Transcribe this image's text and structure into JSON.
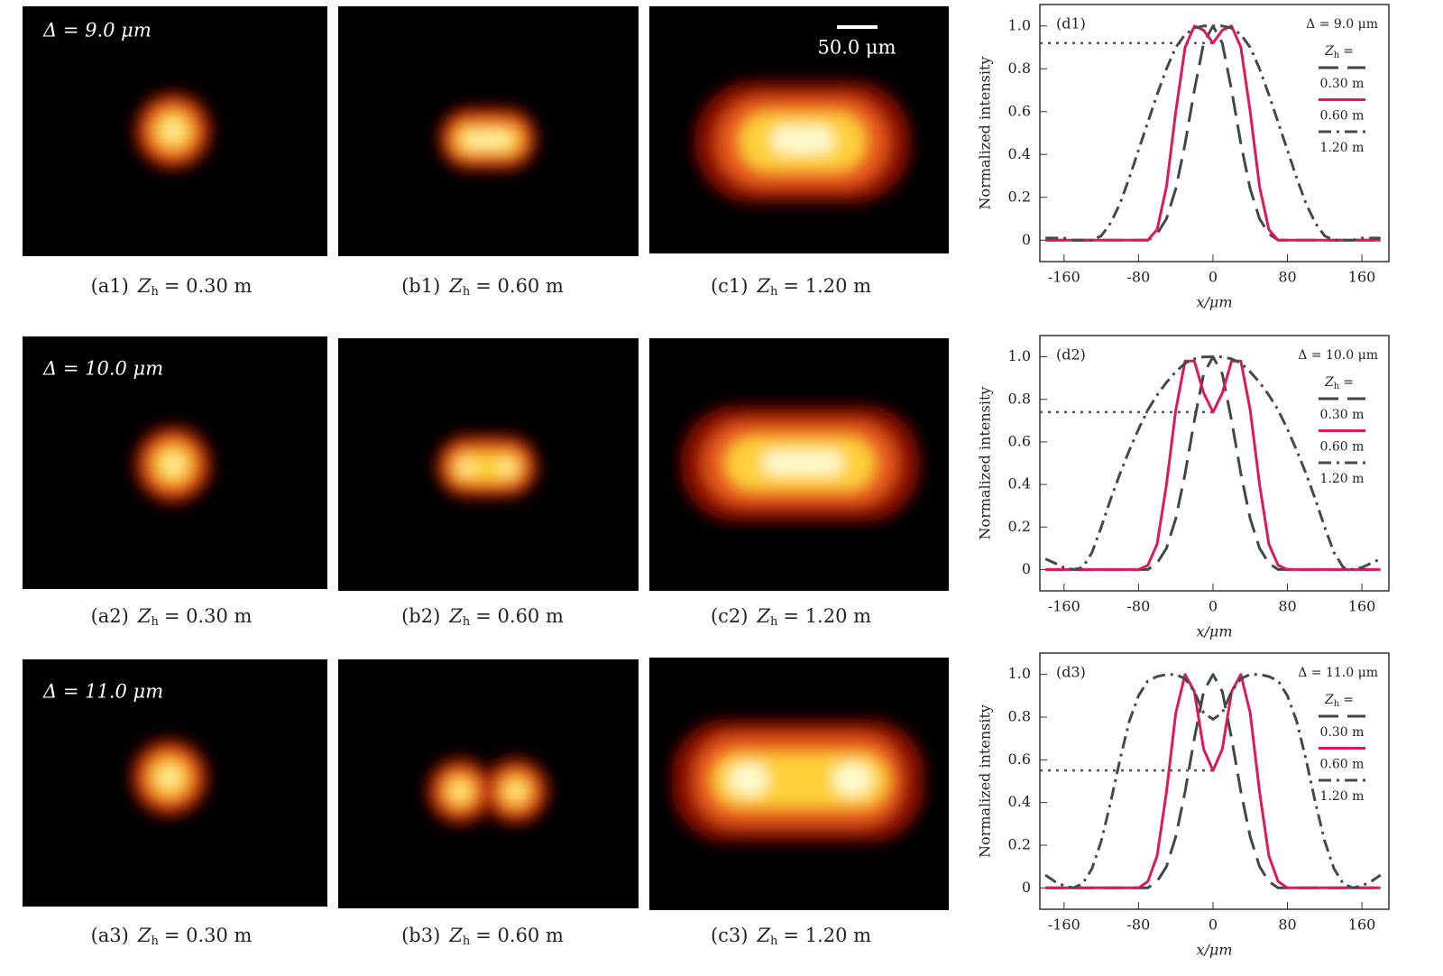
{
  "panels": [
    {
      "delta": "Δ = 9.0 μm",
      "captions": [
        {
          "tag": "(a1)",
          "var": "Z",
          "sub": "h",
          "value": "= 0.30 m"
        },
        {
          "tag": "(b1)",
          "var": "Z",
          "sub": "h",
          "value": "= 0.60 m"
        },
        {
          "tag": "(c1)",
          "var": "Z",
          "sub": "h",
          "value": "= 1.20 m"
        }
      ]
    },
    {
      "delta": "Δ = 10.0 μm",
      "captions": [
        {
          "tag": "(a2)",
          "var": "Z",
          "sub": "h",
          "value": "= 0.30 m"
        },
        {
          "tag": "(b2)",
          "var": "Z",
          "sub": "h",
          "value": "= 0.60 m"
        },
        {
          "tag": "(c2)",
          "var": "Z",
          "sub": "h",
          "value": "= 1.20 m"
        }
      ]
    },
    {
      "delta": "Δ = 11.0 μm",
      "captions": [
        {
          "tag": "(a3)",
          "var": "Z",
          "sub": "h",
          "value": "= 0.30 m"
        },
        {
          "tag": "(b3)",
          "var": "Z",
          "sub": "h",
          "value": "= 0.60 m"
        },
        {
          "tag": "(c3)",
          "var": "Z",
          "sub": "h",
          "value": "= 1.20 m"
        }
      ]
    }
  ],
  "scale_bar": "50.0 μm",
  "chart_data": [
    {
      "type": "line",
      "panel_label": "(d1)",
      "annotation": "Δ = 9.0 μm",
      "legend_title": {
        "var": "Z",
        "sub": "h",
        "rest": "="
      },
      "x_label": "x/μm",
      "y_label": "Normalized intensity",
      "xlim": [
        -186,
        189
      ],
      "ylim": [
        -0.1,
        1.1
      ],
      "xticks": [
        -160,
        -80,
        0,
        80,
        160
      ],
      "yticks": [
        0,
        0.2,
        0.4,
        0.6,
        0.8,
        {
          "value": 1,
          "label": "1.0"
        }
      ],
      "x": [
        -180,
        -170,
        -160,
        -150,
        -140,
        -130,
        -120,
        -110,
        -100,
        -90,
        -80,
        -70,
        -60,
        -50,
        -40,
        -30,
        -20,
        -10,
        0,
        10,
        20,
        30,
        40,
        50,
        60,
        70,
        80,
        90,
        100,
        110,
        120,
        130,
        140,
        150,
        160,
        170,
        180
      ],
      "hline": {
        "y": 0.92,
        "x": [
          -186,
          5
        ]
      },
      "series": [
        {
          "name": "0.30 m",
          "color": "#3b4a47",
          "dash": "dashed",
          "values": [
            0,
            0,
            0,
            0,
            0,
            0,
            0,
            0,
            0,
            0,
            0,
            0,
            0.03,
            0.1,
            0.24,
            0.45,
            0.7,
            0.92,
            1,
            0.92,
            0.7,
            0.45,
            0.24,
            0.1,
            0.03,
            0,
            0,
            0,
            0,
            0,
            0,
            0,
            0,
            0,
            0,
            0,
            0
          ]
        },
        {
          "name": "0.60 m",
          "color": "#e0185a",
          "dash": "solid",
          "values": [
            0,
            0,
            0,
            0,
            0,
            0,
            0,
            0,
            0,
            0,
            0,
            0,
            0.05,
            0.25,
            0.6,
            0.9,
            1,
            0.98,
            0.92,
            0.98,
            1,
            0.9,
            0.6,
            0.25,
            0.05,
            0,
            0,
            0,
            0,
            0,
            0,
            0,
            0,
            0,
            0,
            0,
            0
          ]
        },
        {
          "name": "1.20 m",
          "color": "#45484c",
          "dash": "dashdot",
          "values": [
            0.01,
            0.01,
            0.01,
            0,
            0,
            0,
            0.02,
            0.08,
            0.17,
            0.29,
            0.42,
            0.55,
            0.68,
            0.8,
            0.9,
            0.96,
            0.99,
            1,
            1,
            1,
            0.99,
            0.96,
            0.9,
            0.8,
            0.68,
            0.55,
            0.42,
            0.29,
            0.17,
            0.08,
            0.02,
            0,
            0,
            0,
            0.01,
            0.01,
            0.01
          ]
        }
      ]
    },
    {
      "type": "line",
      "panel_label": "(d2)",
      "annotation": "Δ = 10.0 μm",
      "legend_title": {
        "var": "Z",
        "sub": "h",
        "rest": "="
      },
      "x_label": "x/μm",
      "y_label": "Normalized intensity",
      "xlim": [
        -186,
        189
      ],
      "ylim": [
        -0.1,
        1.1
      ],
      "xticks": [
        -160,
        -80,
        0,
        80,
        160
      ],
      "yticks": [
        0,
        0.2,
        0.4,
        0.6,
        0.8,
        {
          "value": 1,
          "label": "1.0"
        }
      ],
      "x": [
        -180,
        -170,
        -160,
        -150,
        -140,
        -130,
        -120,
        -110,
        -100,
        -90,
        -80,
        -70,
        -60,
        -50,
        -40,
        -30,
        -20,
        -10,
        0,
        10,
        20,
        30,
        40,
        50,
        60,
        70,
        80,
        90,
        100,
        110,
        120,
        130,
        140,
        150,
        160,
        170,
        180
      ],
      "hline": {
        "y": 0.74,
        "x": [
          -186,
          0
        ]
      },
      "series": [
        {
          "name": "0.30 m",
          "color": "#3b4a47",
          "dash": "dashed",
          "values": [
            0,
            0,
            0,
            0,
            0,
            0,
            0,
            0,
            0,
            0,
            0,
            0,
            0.03,
            0.1,
            0.24,
            0.45,
            0.7,
            0.92,
            1,
            0.92,
            0.7,
            0.45,
            0.24,
            0.1,
            0.03,
            0,
            0,
            0,
            0,
            0,
            0,
            0,
            0,
            0,
            0,
            0,
            0
          ]
        },
        {
          "name": "0.60 m",
          "color": "#e0185a",
          "dash": "solid",
          "values": [
            0,
            0,
            0,
            0,
            0,
            0,
            0,
            0,
            0,
            0,
            0,
            0.02,
            0.12,
            0.4,
            0.75,
            0.98,
            0.98,
            0.83,
            0.74,
            0.83,
            0.98,
            0.98,
            0.75,
            0.4,
            0.12,
            0.02,
            0,
            0,
            0,
            0,
            0,
            0,
            0,
            0,
            0,
            0,
            0
          ]
        },
        {
          "name": "1.20 m",
          "color": "#45484c",
          "dash": "dashdot",
          "values": [
            0.05,
            0.03,
            0.01,
            0,
            0.01,
            0.08,
            0.2,
            0.33,
            0.45,
            0.56,
            0.66,
            0.75,
            0.82,
            0.88,
            0.93,
            0.97,
            0.99,
            1,
            1,
            1,
            0.99,
            0.97,
            0.93,
            0.88,
            0.82,
            0.75,
            0.66,
            0.56,
            0.45,
            0.33,
            0.2,
            0.08,
            0.01,
            0,
            0.01,
            0.03,
            0.05
          ]
        }
      ]
    },
    {
      "type": "line",
      "panel_label": "(d3)",
      "annotation": "Δ = 11.0 μm",
      "legend_title": {
        "var": "Z",
        "sub": "h",
        "rest": "="
      },
      "x_label": "x/μm",
      "y_label": "Normalized intensity",
      "xlim": [
        -186,
        189
      ],
      "ylim": [
        -0.1,
        1.1
      ],
      "xticks": [
        -160,
        -80,
        0,
        80,
        160
      ],
      "yticks": [
        0,
        0.2,
        0.4,
        0.6,
        0.8,
        {
          "value": 1,
          "label": "1.0"
        }
      ],
      "x": [
        -180,
        -170,
        -160,
        -150,
        -140,
        -130,
        -120,
        -110,
        -100,
        -90,
        -80,
        -70,
        -60,
        -50,
        -40,
        -30,
        -20,
        -10,
        0,
        10,
        20,
        30,
        40,
        50,
        60,
        70,
        80,
        90,
        100,
        110,
        120,
        130,
        140,
        150,
        160,
        170,
        180
      ],
      "hline": {
        "y": 0.55,
        "x": [
          -186,
          0
        ]
      },
      "series": [
        {
          "name": "0.30 m",
          "color": "#3b4a47",
          "dash": "dashed",
          "values": [
            0,
            0,
            0,
            0,
            0,
            0,
            0,
            0,
            0,
            0,
            0,
            0,
            0.03,
            0.1,
            0.24,
            0.45,
            0.7,
            0.92,
            1,
            0.92,
            0.7,
            0.45,
            0.24,
            0.1,
            0.03,
            0,
            0,
            0,
            0,
            0,
            0,
            0,
            0,
            0,
            0,
            0,
            0
          ]
        },
        {
          "name": "0.60 m",
          "color": "#e0185a",
          "dash": "solid",
          "values": [
            0,
            0,
            0,
            0,
            0,
            0,
            0,
            0,
            0,
            0,
            0,
            0.03,
            0.15,
            0.45,
            0.82,
            1,
            0.92,
            0.65,
            0.55,
            0.65,
            0.92,
            1,
            0.82,
            0.45,
            0.15,
            0.03,
            0,
            0,
            0,
            0,
            0,
            0,
            0,
            0,
            0,
            0,
            0
          ]
        },
        {
          "name": "1.20 m",
          "color": "#45484c",
          "dash": "dashdot",
          "values": [
            0.06,
            0.03,
            0.01,
            0,
            0.02,
            0.09,
            0.22,
            0.4,
            0.6,
            0.78,
            0.9,
            0.97,
            0.99,
            1,
            1,
            0.98,
            0.92,
            0.82,
            0.79,
            0.82,
            0.92,
            0.98,
            1,
            1,
            0.99,
            0.97,
            0.9,
            0.78,
            0.6,
            0.4,
            0.22,
            0.09,
            0.02,
            0,
            0.01,
            0.03,
            0.06
          ]
        }
      ]
    }
  ]
}
